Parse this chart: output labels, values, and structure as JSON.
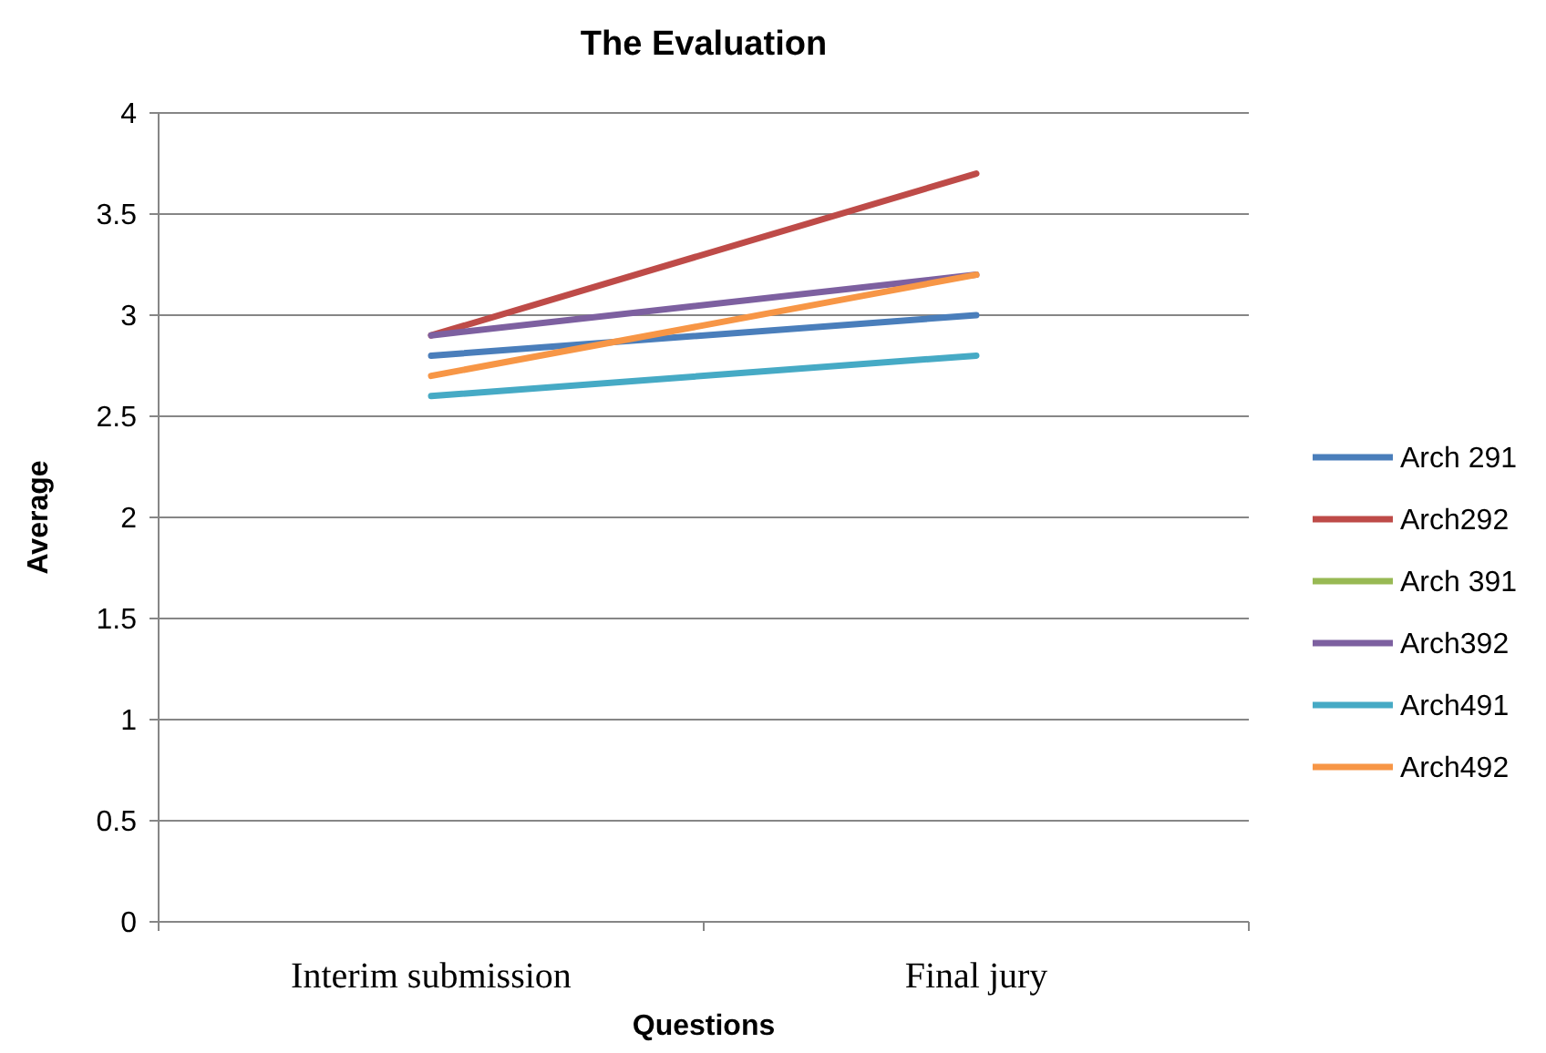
{
  "chart_data": {
    "type": "line",
    "title": "The Evaluation",
    "xlabel": "Questions",
    "ylabel": "Average",
    "categories": [
      "Interim submission",
      "Final jury"
    ],
    "series": [
      {
        "name": "Arch 291",
        "color": "#4a7ebb",
        "values": [
          2.8,
          3.0
        ]
      },
      {
        "name": "Arch292",
        "color": "#be4b48",
        "values": [
          2.9,
          3.7
        ]
      },
      {
        "name": "Arch 391",
        "color": "#98b954",
        "values": [
          null,
          null
        ]
      },
      {
        "name": "Arch392",
        "color": "#7d60a0",
        "values": [
          2.9,
          3.2
        ]
      },
      {
        "name": "Arch491",
        "color": "#46aac5",
        "values": [
          2.6,
          2.8
        ]
      },
      {
        "name": "Arch492",
        "color": "#f79646",
        "values": [
          2.7,
          3.2
        ]
      }
    ],
    "ylim": [
      0,
      4
    ],
    "yticks": [
      0,
      0.5,
      1,
      1.5,
      2,
      2.5,
      3,
      3.5,
      4
    ],
    "grid": "y",
    "legend": "right",
    "marker": "none",
    "line_style": "solid"
  }
}
